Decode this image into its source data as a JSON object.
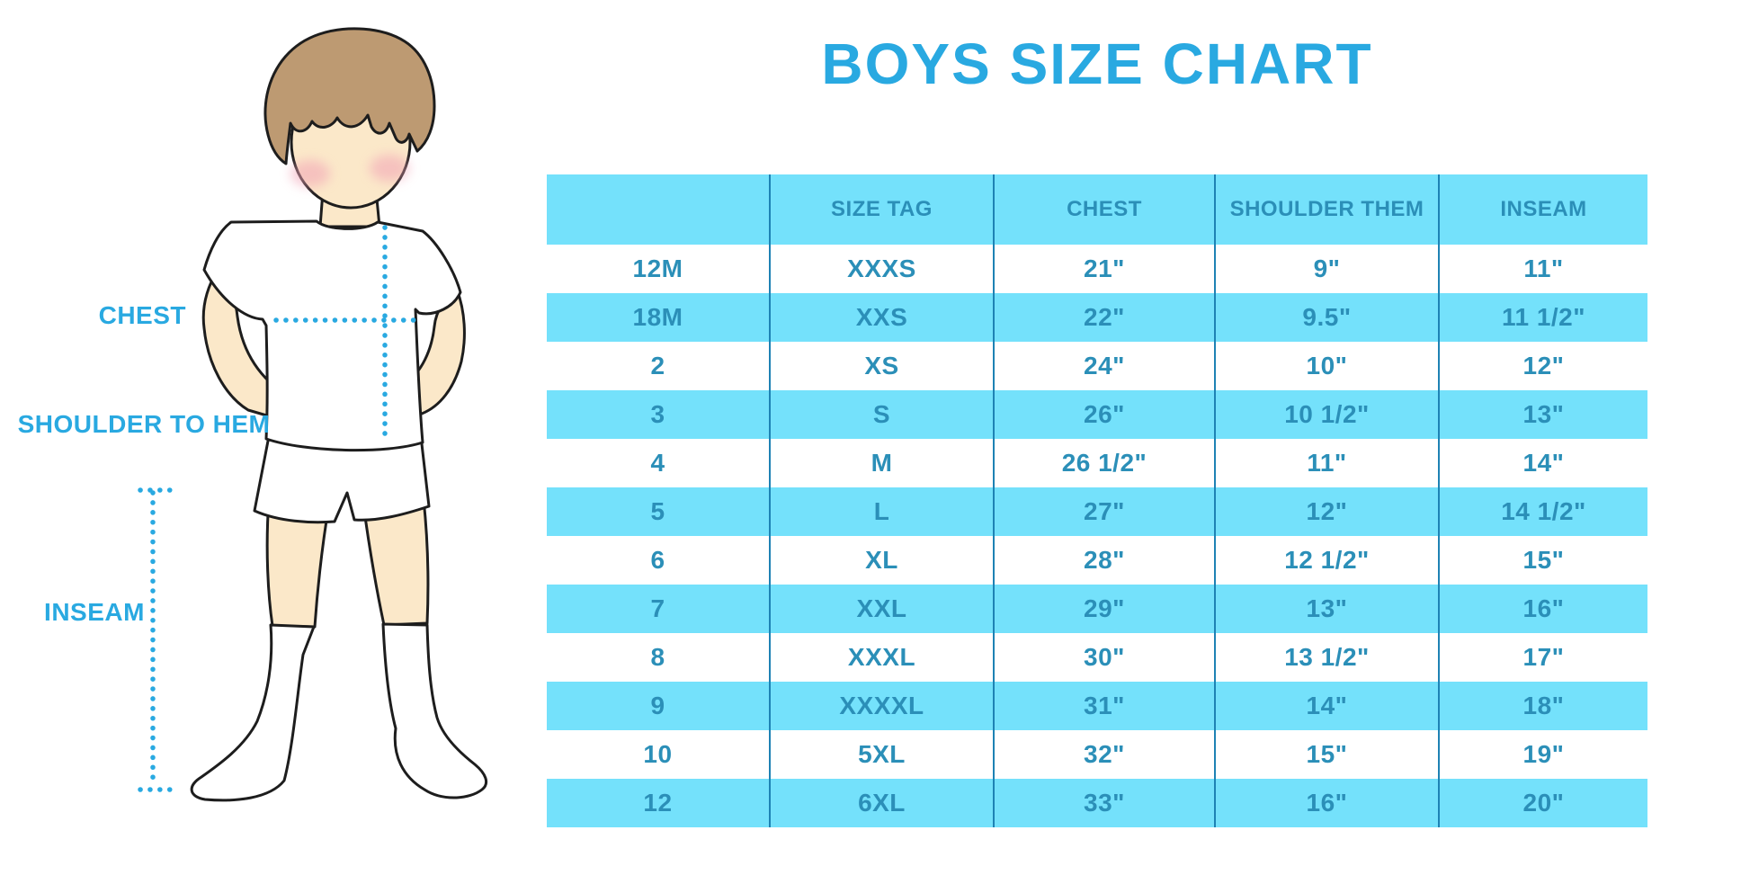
{
  "title": "BOYS SIZE CHART",
  "figure_labels": {
    "chest": "CHEST",
    "shoulder_to_hem": "SHOULDER TO HEM",
    "inseam": "INSEAM"
  },
  "chart_data": {
    "type": "table",
    "title": "BOYS SIZE CHART",
    "columns": [
      "",
      "SIZE TAG",
      "CHEST",
      "SHOULDER THEM",
      "INSEAM"
    ],
    "rows": [
      [
        "12M",
        "XXXS",
        "21\"",
        "9\"",
        "11\""
      ],
      [
        "18M",
        "XXS",
        "22\"",
        "9.5\"",
        "11 1/2\""
      ],
      [
        "2",
        "XS",
        "24\"",
        "10\"",
        "12\""
      ],
      [
        "3",
        "S",
        "26\"",
        "10 1/2\"",
        "13\""
      ],
      [
        "4",
        "M",
        "26 1/2\"",
        "11\"",
        "14\""
      ],
      [
        "5",
        "L",
        "27\"",
        "12\"",
        "14 1/2\""
      ],
      [
        "6",
        "XL",
        "28\"",
        "12 1/2\"",
        "15\""
      ],
      [
        "7",
        "XXL",
        "29\"",
        "13\"",
        "16\""
      ],
      [
        "8",
        "XXXL",
        "30\"",
        "13 1/2\"",
        "17\""
      ],
      [
        "9",
        "XXXXL",
        "31\"",
        "14\"",
        "18\""
      ],
      [
        "10",
        "5XL",
        "32\"",
        "15\"",
        "19\""
      ],
      [
        "12",
        "6XL",
        "33\"",
        "16\"",
        "20\""
      ]
    ]
  },
  "colors": {
    "accent_blue": "#29A9E1",
    "band_blue": "#74E1FB",
    "cell_text": "#2B8FB8",
    "divider": "#1E82B4",
    "skin": "#FBE8C9",
    "hair": "#BD9A72",
    "blush": "#F2A3B6"
  }
}
